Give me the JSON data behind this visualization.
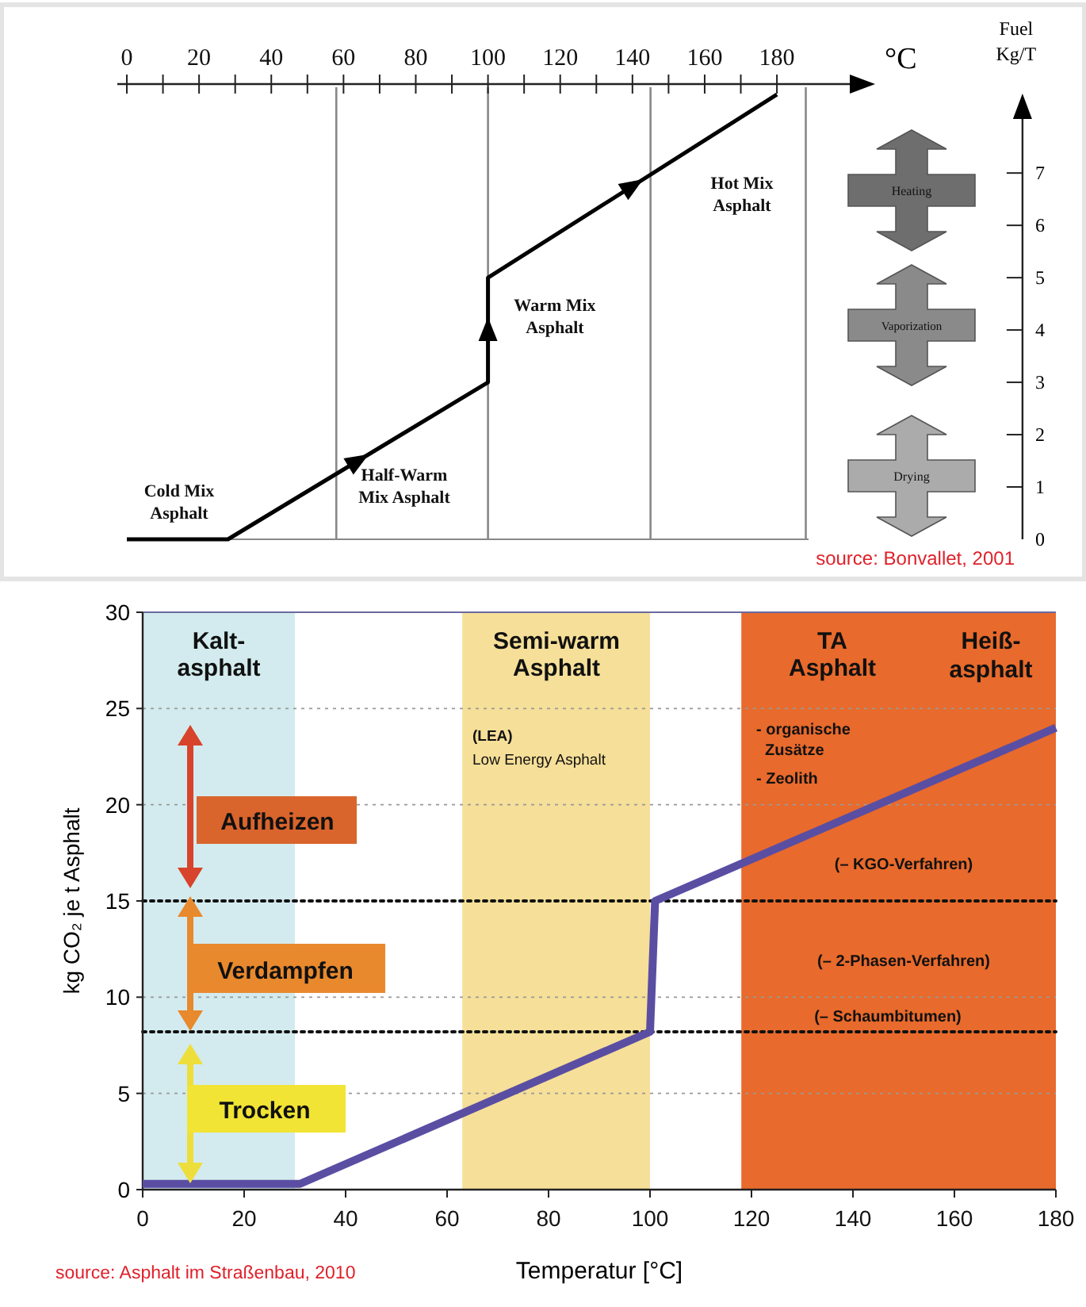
{
  "chart_data": [
    {
      "type": "line",
      "xlabel": "°C",
      "ylabel": "Fuel\nKg/T",
      "xlim": [
        0,
        248
      ],
      "xticks": [
        0,
        {
          "value": 10,
          "label": null
        },
        20,
        {
          "value": 30,
          "label": null
        },
        40,
        {
          "value": 50,
          "label": null
        },
        60,
        {
          "value": 70,
          "label": null
        },
        80,
        {
          "value": 90,
          "label": null
        },
        100,
        {
          "value": 110,
          "label": null
        },
        120,
        {
          "value": 130,
          "label": null
        },
        140,
        {
          "value": 150,
          "label": null
        },
        160,
        {
          "value": 170,
          "label": null
        },
        180
      ],
      "ylim": [
        0,
        8.7
      ],
      "yticks": [
        0,
        1,
        2,
        3,
        4,
        5,
        6,
        7
      ],
      "series": [
        {
          "color": "#000000",
          "x": [
            0,
            28,
            100,
            100,
            180
          ],
          "values": [
            0,
            0,
            3,
            5,
            8.5
          ]
        }
      ],
      "ref_lines": [
        {
          "axis": "x",
          "value": 58,
          "color": "#888888"
        },
        {
          "axis": "x",
          "value": 100,
          "color": "#888888"
        },
        {
          "axis": "x",
          "value": 145,
          "color": "#888888"
        },
        {
          "axis": "x",
          "value": 188,
          "color": "#888888"
        }
      ],
      "annotations": [
        "Cold Mix\nAsphalt",
        "Half-Warm\nMix Asphalt",
        "Warm Mix\nAsphalt",
        "Hot Mix\nAsphalt",
        "Heating",
        "Vaporization",
        "Drying",
        "source: Bonvallet, 2001"
      ]
    },
    {
      "type": "line",
      "xlabel": "Temperatur [°C]",
      "ylabel": "kg CO₂ je t Asphalt",
      "xlim": [
        0,
        180
      ],
      "xticks": [
        0,
        20,
        40,
        60,
        80,
        100,
        120,
        140,
        160,
        180
      ],
      "ylim": [
        0,
        30
      ],
      "yticks": [
        0,
        5,
        10,
        15,
        20,
        25,
        30
      ],
      "grid": "y",
      "series": [
        {
          "color": "#5a4ea3",
          "x": [
            0,
            31,
            100,
            101,
            180
          ],
          "values": [
            0.3,
            0.3,
            8.2,
            15,
            24
          ]
        }
      ],
      "bands": [
        {
          "axis": "x",
          "from": 0,
          "to": 30,
          "label": "Kalt-\nasphalt",
          "color": "#d3ebee"
        },
        {
          "axis": "x",
          "from": 63,
          "to": 100,
          "label": "Semi-warm\nAsphalt",
          "color": "#f6df98"
        },
        {
          "axis": "x",
          "from": 118,
          "to": 180,
          "label": "TA\nAsphalt",
          "color": "#e86a2c"
        }
      ],
      "ref_lines": [
        {
          "axis": "y",
          "value": 15,
          "line_style": "dotted",
          "color": "#111111"
        },
        {
          "axis": "y",
          "value": 8.2,
          "line_style": "dotted",
          "color": "#111111"
        }
      ],
      "annotations": [
        "Heiß-\nasphalt",
        "(LEA)",
        "Low Energy Asphalt",
        "- organische\n  Zusätze",
        "- Zeolith",
        "(– KGO-Verfahren)",
        "(– 2-Phasen-Verfahren)",
        "(– Schaumbitumen)",
        "Aufheizen",
        "Verdampfen",
        "Trocken",
        "source: Asphalt im Straßenbau, 2010"
      ]
    }
  ]
}
